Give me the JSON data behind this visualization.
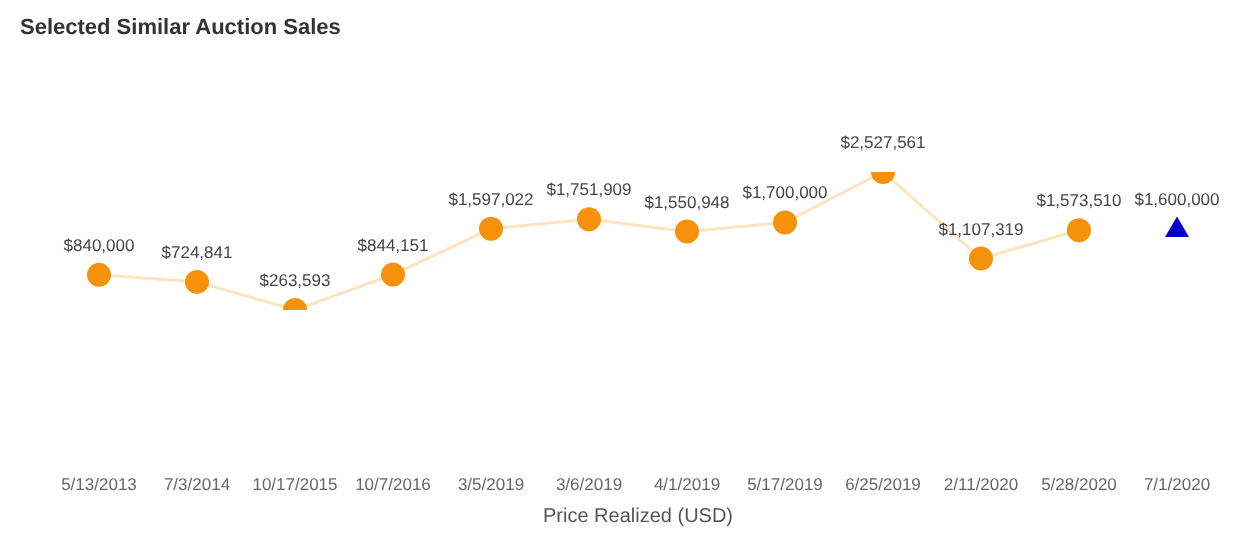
{
  "chart_data": {
    "type": "line",
    "title": "Selected Similar Auction Sales",
    "xlabel": "Price Realized (USD)",
    "categories": [
      "5/13/2013",
      "7/3/2014",
      "10/17/2015",
      "10/7/2016",
      "3/5/2019",
      "3/6/2019",
      "4/1/2019",
      "5/17/2019",
      "6/25/2019",
      "2/11/2020",
      "5/28/2020",
      "7/1/2020"
    ],
    "tick_labels": "x",
    "grid": false,
    "marker": "circle",
    "series": [
      {
        "color": "#f5910a",
        "values": [
          840000,
          724841,
          263593,
          844151,
          1597022,
          1751909,
          1550948,
          1700000,
          2527561,
          1107319,
          1573510,
          null
        ],
        "value_labels": [
          "$840,000",
          "$724,841",
          "$263,593",
          "$844,151",
          "$1,597,022",
          "$1,751,909",
          "$1,550,948",
          "$1,700,000",
          "$2,527,561",
          "$1,107,319",
          "$1,573,510",
          null
        ]
      },
      {
        "type": "scatter",
        "marker": "triangle",
        "color": "#0000cc",
        "values": [
          null,
          null,
          null,
          null,
          null,
          null,
          null,
          null,
          null,
          null,
          null,
          1600000
        ],
        "value_labels": [
          null,
          null,
          null,
          null,
          null,
          null,
          null,
          null,
          null,
          null,
          null,
          "$1,600,000"
        ]
      }
    ]
  }
}
